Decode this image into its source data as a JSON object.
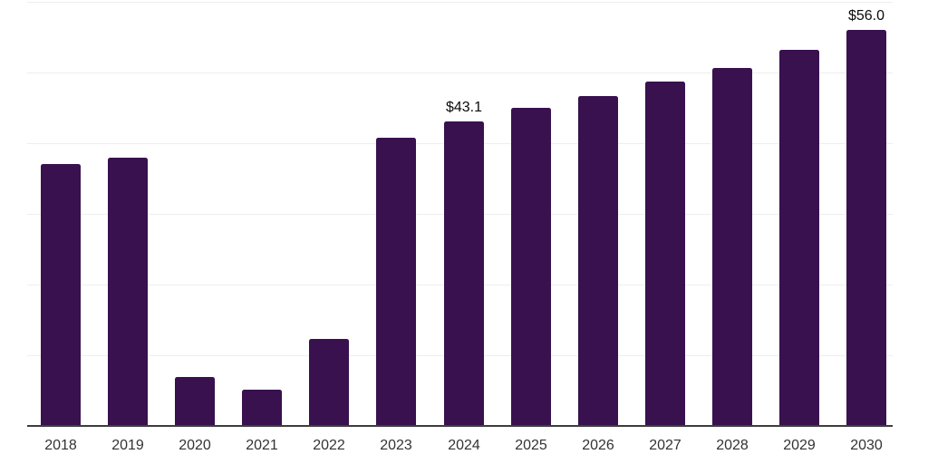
{
  "chart_data": {
    "type": "bar",
    "title": "",
    "xlabel": "",
    "ylabel": "",
    "categories": [
      "2018",
      "2019",
      "2020",
      "2021",
      "2022",
      "2023",
      "2024",
      "2025",
      "2026",
      "2027",
      "2028",
      "2029",
      "2030"
    ],
    "values": [
      37.0,
      38.0,
      6.9,
      5.1,
      12.3,
      40.8,
      43.1,
      45.0,
      46.7,
      48.7,
      50.7,
      53.2,
      56.0
    ],
    "annotations": [
      {
        "category": "2024",
        "text": "$43.1"
      },
      {
        "category": "2030",
        "text": "$56.0"
      }
    ],
    "ylim": [
      0,
      60
    ],
    "grid": true,
    "gridline_step": 10,
    "y_tick_labels_visible": false,
    "legend": "none",
    "colors": {
      "bar": "#38114E",
      "axis_line": "#3d3d3d",
      "gridline": "#eeeeee",
      "x_tick_label": "#333333",
      "annotation_text": "#0a0a0a",
      "background": "#ffffff"
    }
  }
}
